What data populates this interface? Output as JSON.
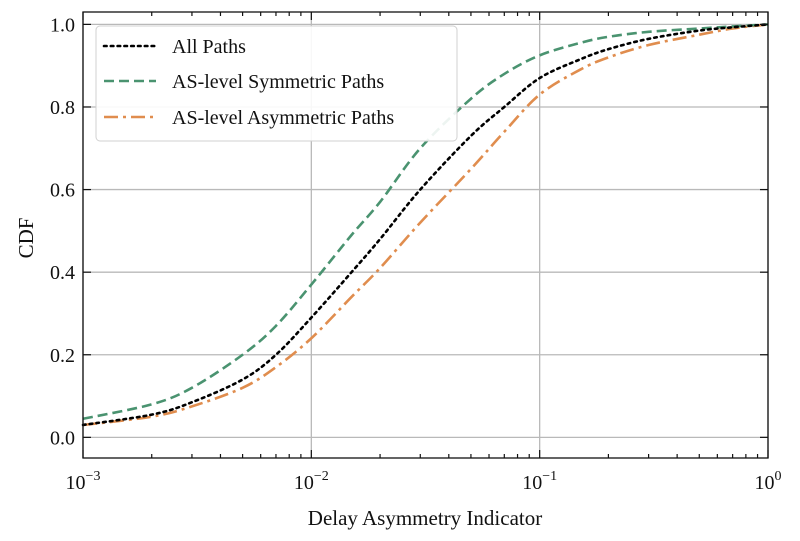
{
  "chart_data": {
    "type": "line",
    "xscale": "log",
    "xlim": [
      0.001,
      1
    ],
    "ylim": [
      -0.05,
      1.03
    ],
    "grid": true,
    "legend_position": "top-left",
    "xlabel": "Delay Asymmetry Indicator",
    "ylabel": "CDF",
    "x_ticks": [
      {
        "value": 0.001,
        "base": "10",
        "exp": "−3"
      },
      {
        "value": 0.01,
        "base": "10",
        "exp": "−2"
      },
      {
        "value": 0.1,
        "base": "10",
        "exp": "−1"
      },
      {
        "value": 1,
        "base": "10",
        "exp": "0"
      }
    ],
    "y_ticks": [
      {
        "value": 0.0,
        "label": "0.0"
      },
      {
        "value": 0.2,
        "label": "0.2"
      },
      {
        "value": 0.4,
        "label": "0.4"
      },
      {
        "value": 0.6,
        "label": "0.6"
      },
      {
        "value": 0.8,
        "label": "0.8"
      },
      {
        "value": 1.0,
        "label": "1.0"
      }
    ],
    "series": [
      {
        "name": "All Paths",
        "color": "#000000",
        "dash": "dotted",
        "points": [
          [
            0.001,
            0.03
          ],
          [
            0.002,
            0.055
          ],
          [
            0.003,
            0.085
          ],
          [
            0.005,
            0.14
          ],
          [
            0.007,
            0.2
          ],
          [
            0.01,
            0.29
          ],
          [
            0.015,
            0.4
          ],
          [
            0.02,
            0.48
          ],
          [
            0.03,
            0.6
          ],
          [
            0.05,
            0.73
          ],
          [
            0.07,
            0.8
          ],
          [
            0.1,
            0.87
          ],
          [
            0.15,
            0.915
          ],
          [
            0.2,
            0.94
          ],
          [
            0.3,
            0.965
          ],
          [
            0.5,
            0.985
          ],
          [
            0.7,
            0.993
          ],
          [
            1,
            1.0
          ]
        ]
      },
      {
        "name": "AS-level Symmetric Paths",
        "color": "#4a9370",
        "dash": "dashed",
        "points": [
          [
            0.001,
            0.045
          ],
          [
            0.002,
            0.08
          ],
          [
            0.003,
            0.12
          ],
          [
            0.005,
            0.2
          ],
          [
            0.007,
            0.27
          ],
          [
            0.01,
            0.37
          ],
          [
            0.015,
            0.49
          ],
          [
            0.02,
            0.57
          ],
          [
            0.03,
            0.7
          ],
          [
            0.05,
            0.82
          ],
          [
            0.07,
            0.88
          ],
          [
            0.1,
            0.925
          ],
          [
            0.15,
            0.955
          ],
          [
            0.2,
            0.97
          ],
          [
            0.3,
            0.982
          ],
          [
            0.5,
            0.99
          ],
          [
            0.7,
            0.995
          ],
          [
            1,
            1.0
          ]
        ]
      },
      {
        "name": "AS-level Asymmetric Paths",
        "color": "#e08d4e",
        "dash": "dashdot",
        "points": [
          [
            0.001,
            0.03
          ],
          [
            0.002,
            0.05
          ],
          [
            0.003,
            0.075
          ],
          [
            0.005,
            0.12
          ],
          [
            0.007,
            0.17
          ],
          [
            0.01,
            0.24
          ],
          [
            0.015,
            0.34
          ],
          [
            0.02,
            0.41
          ],
          [
            0.03,
            0.52
          ],
          [
            0.05,
            0.65
          ],
          [
            0.07,
            0.74
          ],
          [
            0.1,
            0.83
          ],
          [
            0.15,
            0.89
          ],
          [
            0.2,
            0.92
          ],
          [
            0.3,
            0.95
          ],
          [
            0.5,
            0.975
          ],
          [
            0.7,
            0.99
          ],
          [
            1,
            1.0
          ]
        ]
      }
    ]
  }
}
